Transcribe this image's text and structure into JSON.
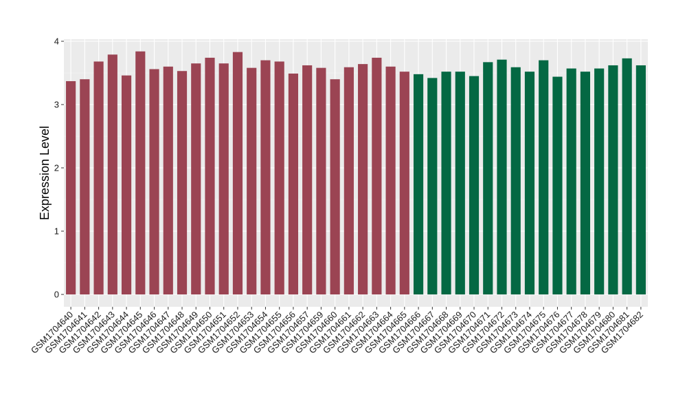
{
  "chart_data": {
    "type": "bar",
    "title": "",
    "xlabel": "",
    "ylabel": "Expression Level",
    "ylim": [
      0,
      4
    ],
    "yticks": [
      0,
      1,
      2,
      3,
      4
    ],
    "grid": true,
    "background": "#ebebeb",
    "group_colors": [
      "#9b4453",
      "#046843"
    ],
    "categories": [
      "GSM1704640",
      "GSM1704641",
      "GSM1704642",
      "GSM1704643",
      "GSM1704644",
      "GSM1704645",
      "GSM1704646",
      "GSM1704647",
      "GSM1704648",
      "GSM1704649",
      "GSM1704650",
      "GSM1704651",
      "GSM1704652",
      "GSM1704653",
      "GSM1704654",
      "GSM1704655",
      "GSM1704656",
      "GSM1704657",
      "GSM1704659",
      "GSM1704660",
      "GSM1704661",
      "GSM1704662",
      "GSM1704663",
      "GSM1704664",
      "GSM1704665",
      "GSM1704666",
      "GSM1704667",
      "GSM1704668",
      "GSM1704669",
      "GSM1704670",
      "GSM1704671",
      "GSM1704672",
      "GSM1704673",
      "GSM1704674",
      "GSM1704675",
      "GSM1704676",
      "GSM1704677",
      "GSM1704678",
      "GSM1704679",
      "GSM1704680",
      "GSM1704681",
      "GSM1704682"
    ],
    "values": [
      3.37,
      3.4,
      3.68,
      3.79,
      3.46,
      3.84,
      3.56,
      3.6,
      3.53,
      3.65,
      3.74,
      3.65,
      3.83,
      3.58,
      3.7,
      3.68,
      3.49,
      3.62,
      3.58,
      3.4,
      3.59,
      3.64,
      3.74,
      3.6,
      3.52,
      3.48,
      3.42,
      3.52,
      3.52,
      3.45,
      3.67,
      3.71,
      3.59,
      3.52,
      3.7,
      3.44,
      3.57,
      3.52,
      3.57,
      3.62,
      3.73,
      3.62
    ],
    "groups": [
      0,
      0,
      0,
      0,
      0,
      0,
      0,
      0,
      0,
      0,
      0,
      0,
      0,
      0,
      0,
      0,
      0,
      0,
      0,
      0,
      0,
      0,
      0,
      0,
      0,
      1,
      1,
      1,
      1,
      1,
      1,
      1,
      1,
      1,
      1,
      1,
      1,
      1,
      1,
      1,
      1,
      1
    ]
  }
}
